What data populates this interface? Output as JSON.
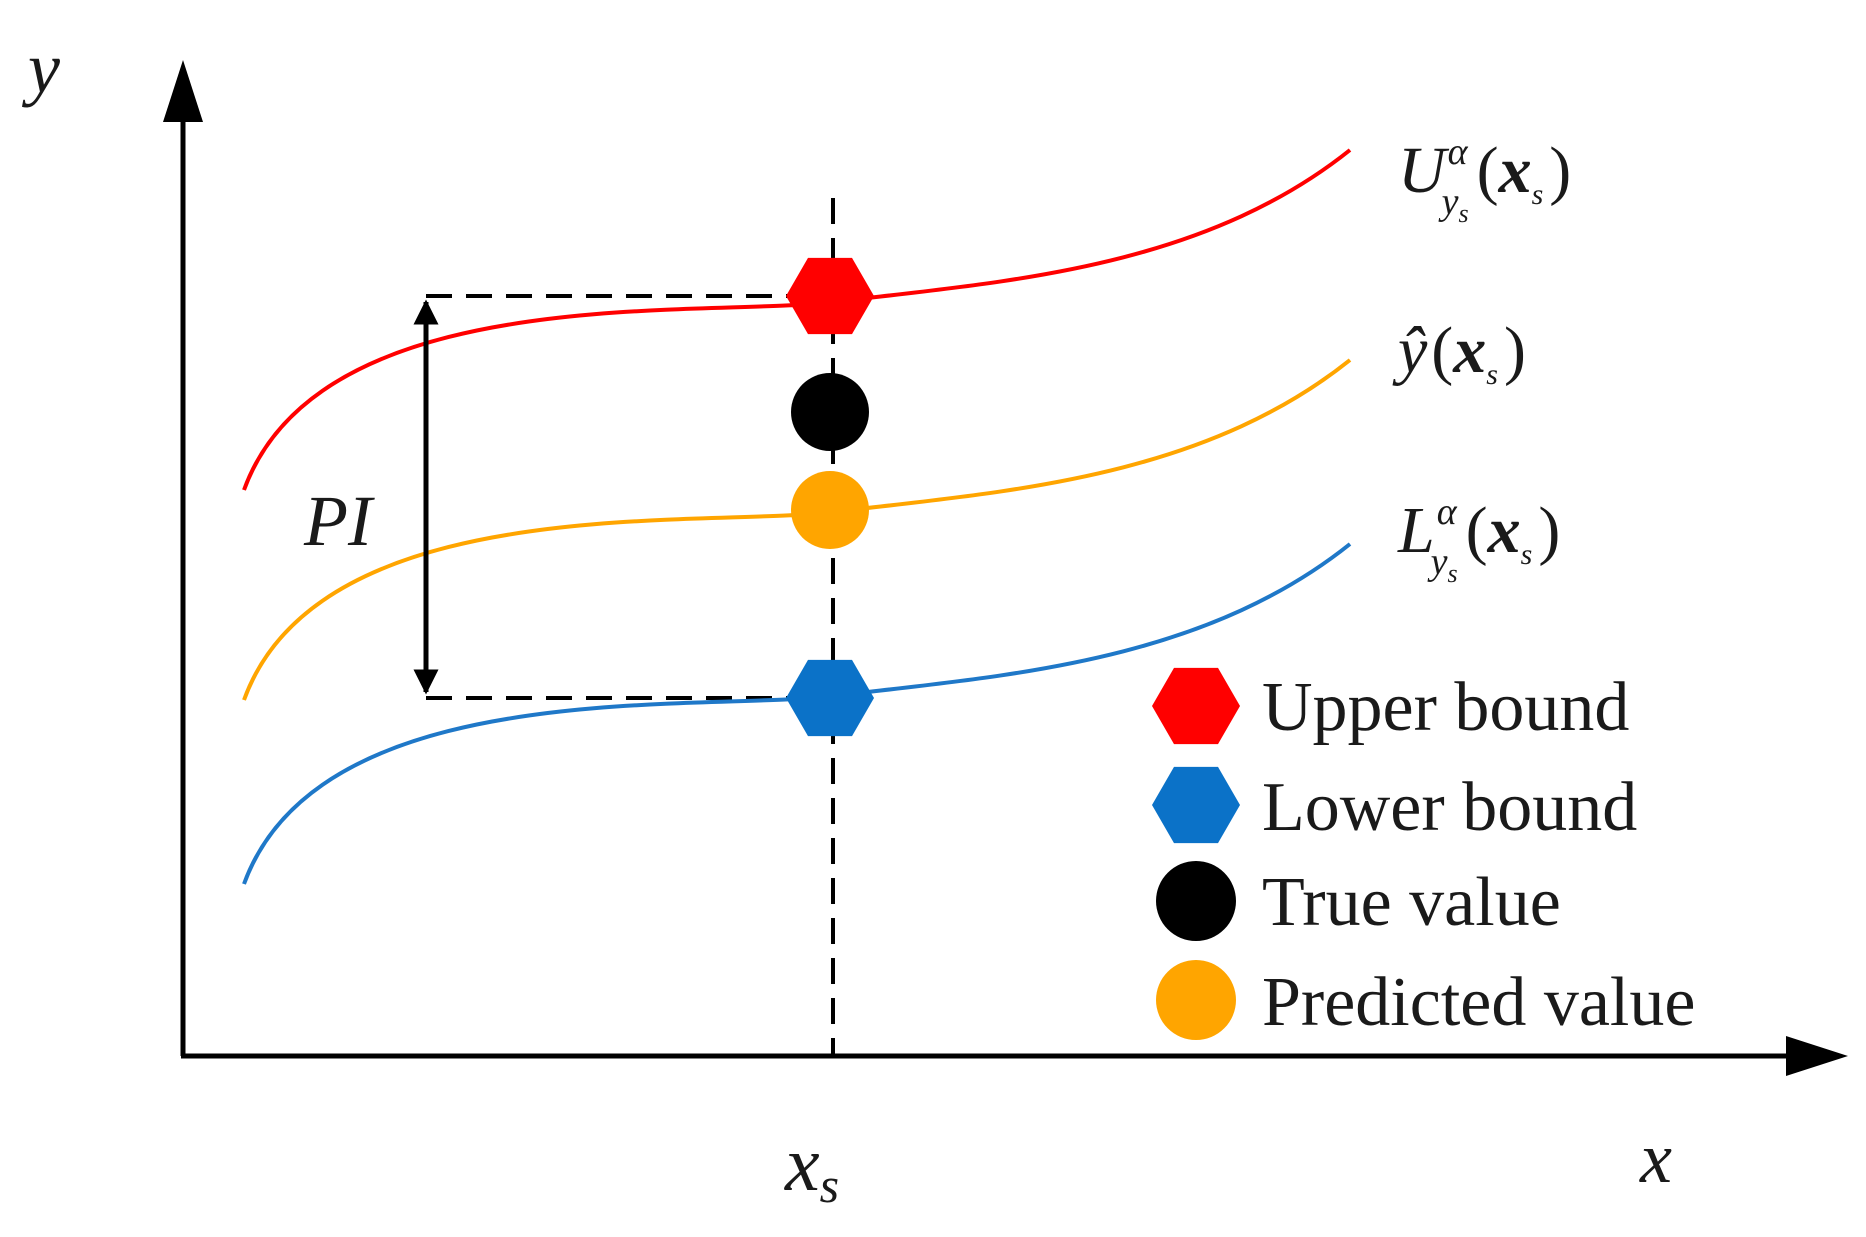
{
  "axes": {
    "x_label": "x",
    "y_label": "y",
    "x_tick": {
      "main": "x",
      "sub": "s"
    }
  },
  "curves": [
    {
      "id": "upper",
      "color": "#ff0000"
    },
    {
      "id": "predicted",
      "color": "#ffa500"
    },
    {
      "id": "lower",
      "color": "#1f78c8"
    }
  ],
  "curve_labels": {
    "upper": {
      "letter": "U",
      "sup": "α",
      "sub_main": "y",
      "sub_sub": "s",
      "arg_open": "(",
      "arg": "x",
      "arg_sub": "s",
      "arg_close": ")"
    },
    "predicted": {
      "letter": "ŷ",
      "arg_open": "(",
      "arg": "x",
      "arg_sub": "s",
      "arg_close": ")"
    },
    "lower": {
      "letter": "L",
      "sup": "α",
      "sub_main": "y",
      "sub_sub": "s",
      "arg_open": "(",
      "arg": "x",
      "arg_sub": "s",
      "arg_close": ")"
    }
  },
  "interval_label": "PI",
  "markers": {
    "upper": {
      "shape": "hexagon",
      "color": "#ff0000"
    },
    "true": {
      "shape": "circle",
      "color": "#000000"
    },
    "predicted": {
      "shape": "circle",
      "color": "#ffa500"
    },
    "lower": {
      "shape": "hexagon",
      "color": "#0b72c8"
    }
  },
  "legend": [
    {
      "label": "Upper bound",
      "shape": "hexagon",
      "color": "#ff0000"
    },
    {
      "label": "Lower bound",
      "shape": "hexagon",
      "color": "#0b72c8"
    },
    {
      "label": "True value",
      "shape": "circle",
      "color": "#000000"
    },
    {
      "label": "Predicted value",
      "shape": "circle",
      "color": "#ffa500"
    }
  ]
}
